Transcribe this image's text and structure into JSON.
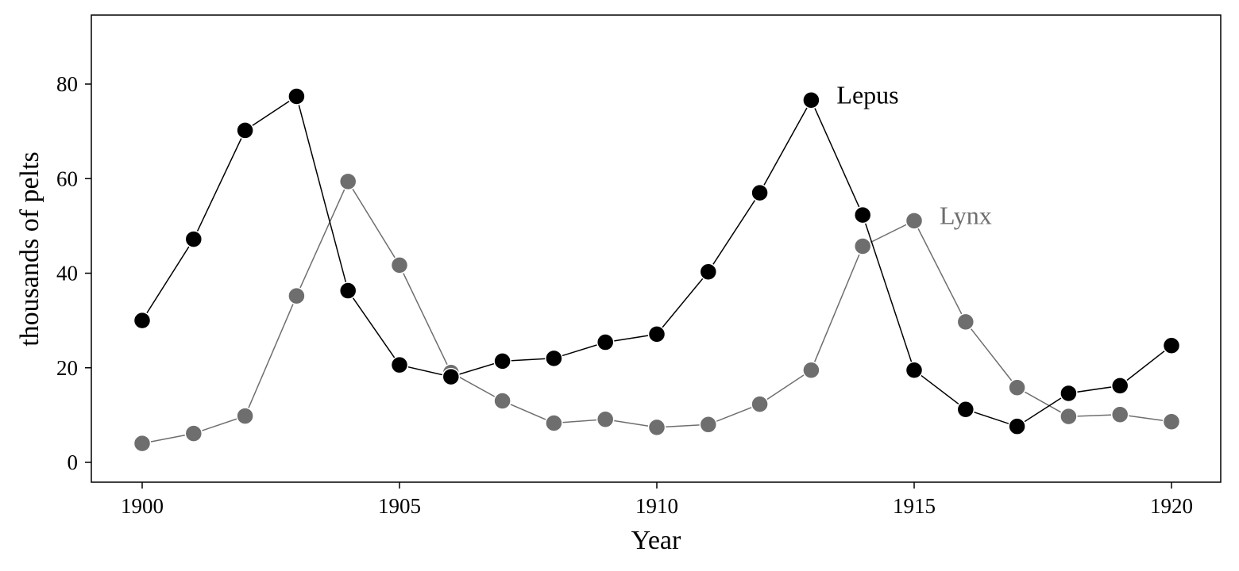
{
  "chart_data": {
    "type": "line",
    "title": "",
    "xlabel": "Year",
    "ylabel": "thousands of pelts",
    "xlim": [
      1899,
      1921
    ],
    "ylim": [
      -4,
      94
    ],
    "x_ticks": [
      1900,
      1905,
      1910,
      1915,
      1920
    ],
    "y_ticks": [
      0,
      20,
      40,
      60,
      80
    ],
    "x_tick_labels": [
      "1900",
      "1905",
      "1910",
      "1915",
      "1920"
    ],
    "y_tick_labels": [
      "0",
      "20",
      "40",
      "60",
      "80"
    ],
    "grid": false,
    "legend": "none (series labeled directly on the plot)",
    "x": [
      1900,
      1901,
      1902,
      1903,
      1904,
      1905,
      1906,
      1907,
      1908,
      1909,
      1910,
      1911,
      1912,
      1913,
      1914,
      1915,
      1916,
      1917,
      1918,
      1919,
      1920
    ],
    "series": [
      {
        "name": "Lynx",
        "color": "#6e6e6e",
        "values": [
          4.0,
          6.1,
          9.8,
          35.2,
          59.4,
          41.7,
          19.0,
          13.0,
          8.3,
          9.1,
          7.4,
          8.0,
          12.3,
          19.5,
          45.7,
          51.1,
          29.7,
          15.8,
          9.7,
          10.1,
          8.6
        ]
      },
      {
        "name": "Lepus",
        "color": "#000000",
        "values": [
          30.0,
          47.2,
          70.2,
          77.4,
          36.3,
          20.6,
          18.1,
          21.4,
          22.0,
          25.4,
          27.1,
          40.3,
          57.0,
          76.6,
          52.3,
          19.5,
          11.2,
          7.6,
          14.6,
          16.2,
          24.7
        ]
      }
    ]
  }
}
